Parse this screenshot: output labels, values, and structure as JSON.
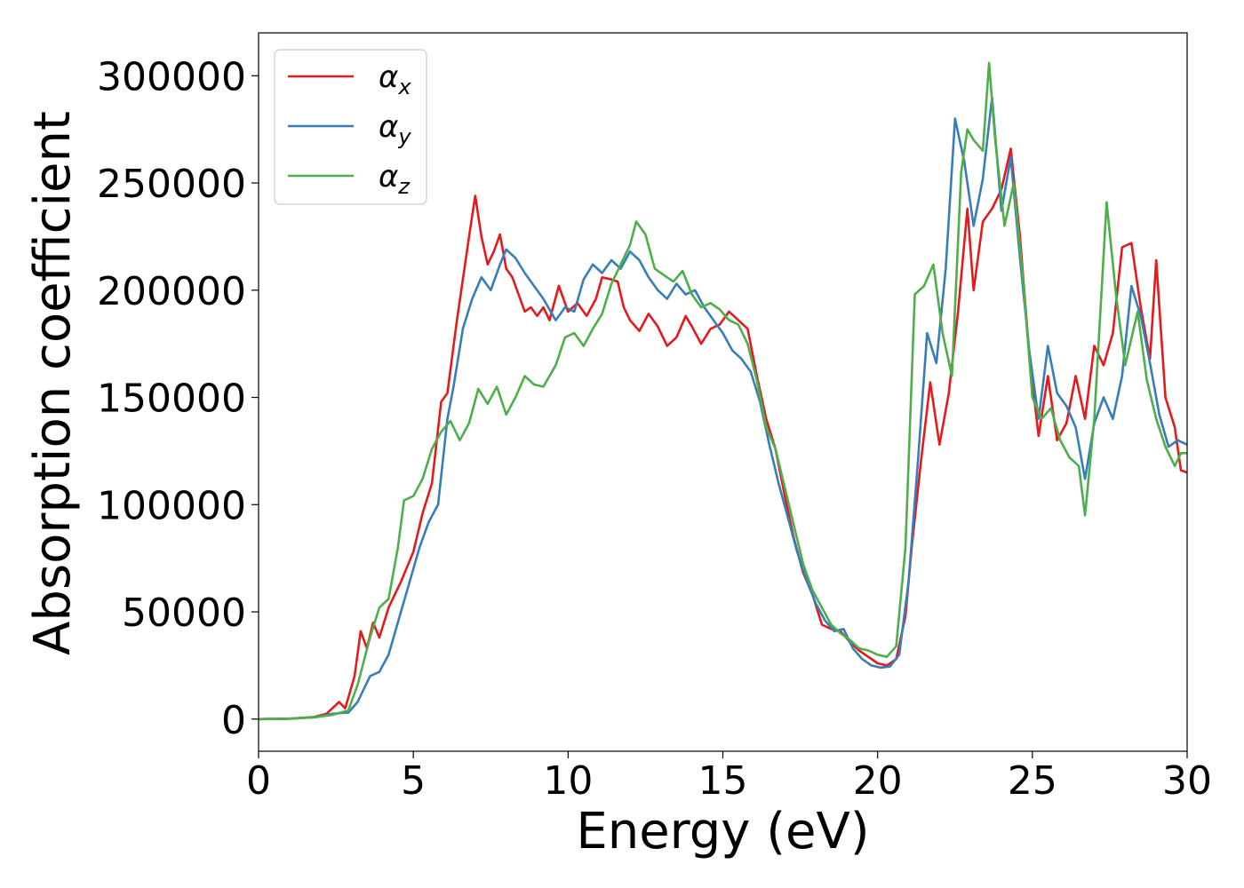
{
  "chart_data": {
    "type": "line",
    "title": "",
    "xlabel": "Energy (eV)",
    "ylabel": "Absorption coefficient",
    "xlim": [
      0,
      30
    ],
    "ylim": [
      -15000,
      320000
    ],
    "xticks": [
      0,
      5,
      10,
      15,
      20,
      25,
      30
    ],
    "yticks": [
      0,
      50000,
      100000,
      150000,
      200000,
      250000,
      300000
    ],
    "grid": false,
    "legend_position": "top-left",
    "series": [
      {
        "name": "αx",
        "legend_main": "α",
        "legend_sub": "x",
        "color": "#e41a1c",
        "points": [
          [
            0,
            0
          ],
          [
            1,
            200
          ],
          [
            1.8,
            1000
          ],
          [
            2.2,
            2500
          ],
          [
            2.6,
            8000
          ],
          [
            2.8,
            5000
          ],
          [
            3.1,
            20000
          ],
          [
            3.3,
            41000
          ],
          [
            3.5,
            33000
          ],
          [
            3.7,
            45000
          ],
          [
            3.9,
            38000
          ],
          [
            4.2,
            52000
          ],
          [
            4.6,
            64000
          ],
          [
            5.0,
            78000
          ],
          [
            5.3,
            96000
          ],
          [
            5.6,
            110000
          ],
          [
            5.9,
            148000
          ],
          [
            6.1,
            152000
          ],
          [
            6.4,
            185000
          ],
          [
            6.6,
            205000
          ],
          [
            6.8,
            225000
          ],
          [
            7.0,
            244000
          ],
          [
            7.2,
            225000
          ],
          [
            7.4,
            212000
          ],
          [
            7.6,
            218000
          ],
          [
            7.8,
            226000
          ],
          [
            8.0,
            210000
          ],
          [
            8.2,
            206000
          ],
          [
            8.4,
            198000
          ],
          [
            8.6,
            190000
          ],
          [
            8.8,
            192000
          ],
          [
            9.0,
            188000
          ],
          [
            9.2,
            192000
          ],
          [
            9.4,
            186000
          ],
          [
            9.7,
            202000
          ],
          [
            10.0,
            190000
          ],
          [
            10.3,
            194000
          ],
          [
            10.6,
            188000
          ],
          [
            10.9,
            196000
          ],
          [
            11.1,
            206000
          ],
          [
            11.4,
            205000
          ],
          [
            11.6,
            204000
          ],
          [
            11.8,
            192000
          ],
          [
            12.0,
            186000
          ],
          [
            12.3,
            181000
          ],
          [
            12.6,
            189000
          ],
          [
            12.9,
            183000
          ],
          [
            13.2,
            174000
          ],
          [
            13.5,
            178000
          ],
          [
            13.8,
            188000
          ],
          [
            14.0,
            183000
          ],
          [
            14.3,
            175000
          ],
          [
            14.6,
            182000
          ],
          [
            14.9,
            184000
          ],
          [
            15.2,
            190000
          ],
          [
            15.5,
            186000
          ],
          [
            15.8,
            182000
          ],
          [
            16.1,
            160000
          ],
          [
            16.4,
            140000
          ],
          [
            16.7,
            126000
          ],
          [
            17.0,
            104000
          ],
          [
            17.3,
            84000
          ],
          [
            17.6,
            68000
          ],
          [
            17.9,
            58000
          ],
          [
            18.2,
            44000
          ],
          [
            18.5,
            42000
          ],
          [
            18.8,
            41000
          ],
          [
            19.1,
            36000
          ],
          [
            19.4,
            32000
          ],
          [
            19.7,
            29000
          ],
          [
            20.0,
            26000
          ],
          [
            20.3,
            25000
          ],
          [
            20.6,
            28000
          ],
          [
            20.9,
            48000
          ],
          [
            21.1,
            80000
          ],
          [
            21.4,
            120000
          ],
          [
            21.7,
            157000
          ],
          [
            22.0,
            128000
          ],
          [
            22.3,
            152000
          ],
          [
            22.6,
            190000
          ],
          [
            22.9,
            238000
          ],
          [
            23.1,
            200000
          ],
          [
            23.4,
            232000
          ],
          [
            23.7,
            238000
          ],
          [
            24.0,
            247000
          ],
          [
            24.3,
            266000
          ],
          [
            24.6,
            225000
          ],
          [
            24.9,
            170000
          ],
          [
            25.2,
            132000
          ],
          [
            25.5,
            160000
          ],
          [
            25.8,
            130000
          ],
          [
            26.1,
            138000
          ],
          [
            26.4,
            160000
          ],
          [
            26.7,
            140000
          ],
          [
            27.0,
            174000
          ],
          [
            27.3,
            165000
          ],
          [
            27.6,
            180000
          ],
          [
            27.9,
            220000
          ],
          [
            28.2,
            222000
          ],
          [
            28.5,
            192000
          ],
          [
            28.8,
            168000
          ],
          [
            29.0,
            214000
          ],
          [
            29.3,
            150000
          ],
          [
            29.6,
            136000
          ],
          [
            29.8,
            116000
          ],
          [
            30.0,
            115000
          ]
        ]
      },
      {
        "name": "αy",
        "legend_main": "α",
        "legend_sub": "y",
        "color": "#377eb8",
        "points": [
          [
            0,
            0
          ],
          [
            1,
            200
          ],
          [
            1.8,
            800
          ],
          [
            2.4,
            2500
          ],
          [
            2.9,
            3000
          ],
          [
            3.2,
            8000
          ],
          [
            3.6,
            20000
          ],
          [
            3.9,
            22000
          ],
          [
            4.2,
            30000
          ],
          [
            4.6,
            50000
          ],
          [
            4.9,
            65000
          ],
          [
            5.2,
            80000
          ],
          [
            5.5,
            92000
          ],
          [
            5.8,
            100000
          ],
          [
            6.1,
            140000
          ],
          [
            6.3,
            155000
          ],
          [
            6.6,
            182000
          ],
          [
            6.9,
            196000
          ],
          [
            7.2,
            206000
          ],
          [
            7.5,
            200000
          ],
          [
            7.8,
            212000
          ],
          [
            8.0,
            219000
          ],
          [
            8.3,
            215000
          ],
          [
            8.6,
            208000
          ],
          [
            8.9,
            202000
          ],
          [
            9.2,
            196000
          ],
          [
            9.6,
            186000
          ],
          [
            9.9,
            192000
          ],
          [
            10.2,
            190000
          ],
          [
            10.5,
            205000
          ],
          [
            10.8,
            212000
          ],
          [
            11.1,
            208000
          ],
          [
            11.4,
            214000
          ],
          [
            11.7,
            210000
          ],
          [
            12.0,
            218000
          ],
          [
            12.3,
            214000
          ],
          [
            12.6,
            206000
          ],
          [
            12.9,
            200000
          ],
          [
            13.2,
            196000
          ],
          [
            13.5,
            203000
          ],
          [
            13.8,
            198000
          ],
          [
            14.1,
            200000
          ],
          [
            14.4,
            192000
          ],
          [
            14.7,
            186000
          ],
          [
            15.0,
            180000
          ],
          [
            15.3,
            172000
          ],
          [
            15.6,
            168000
          ],
          [
            15.9,
            162000
          ],
          [
            16.2,
            148000
          ],
          [
            16.5,
            128000
          ],
          [
            16.8,
            110000
          ],
          [
            17.1,
            94000
          ],
          [
            17.4,
            78000
          ],
          [
            17.7,
            65000
          ],
          [
            18.0,
            54000
          ],
          [
            18.3,
            46000
          ],
          [
            18.6,
            41000
          ],
          [
            18.9,
            42000
          ],
          [
            19.2,
            33000
          ],
          [
            19.5,
            28000
          ],
          [
            19.8,
            25000
          ],
          [
            20.1,
            24000
          ],
          [
            20.4,
            24500
          ],
          [
            20.7,
            30000
          ],
          [
            21.0,
            64000
          ],
          [
            21.3,
            120000
          ],
          [
            21.6,
            180000
          ],
          [
            21.9,
            166000
          ],
          [
            22.2,
            210000
          ],
          [
            22.5,
            280000
          ],
          [
            22.8,
            260000
          ],
          [
            23.1,
            230000
          ],
          [
            23.4,
            252000
          ],
          [
            23.7,
            290000
          ],
          [
            24.0,
            237000
          ],
          [
            24.3,
            262000
          ],
          [
            24.6,
            215000
          ],
          [
            24.9,
            172000
          ],
          [
            25.2,
            140000
          ],
          [
            25.5,
            174000
          ],
          [
            25.8,
            152000
          ],
          [
            26.1,
            146000
          ],
          [
            26.4,
            136000
          ],
          [
            26.7,
            112000
          ],
          [
            27.0,
            138000
          ],
          [
            27.3,
            150000
          ],
          [
            27.6,
            140000
          ],
          [
            27.9,
            160000
          ],
          [
            28.2,
            202000
          ],
          [
            28.5,
            188000
          ],
          [
            28.8,
            166000
          ],
          [
            29.1,
            142000
          ],
          [
            29.4,
            127000
          ],
          [
            29.7,
            130000
          ],
          [
            30.0,
            128000
          ]
        ]
      },
      {
        "name": "αz",
        "legend_main": "α",
        "legend_sub": "z",
        "color": "#4daf4a",
        "points": [
          [
            0,
            0
          ],
          [
            1,
            200
          ],
          [
            1.8,
            800
          ],
          [
            2.4,
            2000
          ],
          [
            2.9,
            4000
          ],
          [
            3.2,
            16000
          ],
          [
            3.6,
            38000
          ],
          [
            3.9,
            52000
          ],
          [
            4.2,
            56000
          ],
          [
            4.5,
            80000
          ],
          [
            4.7,
            102000
          ],
          [
            5.0,
            104000
          ],
          [
            5.3,
            112000
          ],
          [
            5.6,
            126000
          ],
          [
            5.9,
            134000
          ],
          [
            6.2,
            139000
          ],
          [
            6.5,
            130000
          ],
          [
            6.8,
            138000
          ],
          [
            7.1,
            154000
          ],
          [
            7.4,
            147000
          ],
          [
            7.7,
            155000
          ],
          [
            8.0,
            142000
          ],
          [
            8.3,
            150000
          ],
          [
            8.6,
            160000
          ],
          [
            8.9,
            156000
          ],
          [
            9.2,
            155000
          ],
          [
            9.6,
            165000
          ],
          [
            9.9,
            178000
          ],
          [
            10.2,
            180000
          ],
          [
            10.5,
            174000
          ],
          [
            10.8,
            182000
          ],
          [
            11.1,
            189000
          ],
          [
            11.4,
            203000
          ],
          [
            11.7,
            212000
          ],
          [
            12.0,
            221000
          ],
          [
            12.2,
            232000
          ],
          [
            12.5,
            226000
          ],
          [
            12.8,
            210000
          ],
          [
            13.1,
            207000
          ],
          [
            13.4,
            204000
          ],
          [
            13.7,
            209000
          ],
          [
            14.0,
            198000
          ],
          [
            14.3,
            192000
          ],
          [
            14.6,
            194000
          ],
          [
            14.9,
            191000
          ],
          [
            15.2,
            186000
          ],
          [
            15.5,
            184000
          ],
          [
            15.8,
            175000
          ],
          [
            16.1,
            158000
          ],
          [
            16.4,
            136000
          ],
          [
            16.7,
            126000
          ],
          [
            17.0,
            108000
          ],
          [
            17.3,
            90000
          ],
          [
            17.6,
            72000
          ],
          [
            17.9,
            60000
          ],
          [
            18.2,
            52000
          ],
          [
            18.5,
            44000
          ],
          [
            18.8,
            40000
          ],
          [
            19.1,
            37000
          ],
          [
            19.4,
            33000
          ],
          [
            19.7,
            32000
          ],
          [
            20.0,
            30000
          ],
          [
            20.3,
            29000
          ],
          [
            20.6,
            34000
          ],
          [
            20.9,
            80000
          ],
          [
            21.2,
            198000
          ],
          [
            21.5,
            202000
          ],
          [
            21.8,
            212000
          ],
          [
            22.1,
            180000
          ],
          [
            22.4,
            160000
          ],
          [
            22.7,
            255000
          ],
          [
            22.9,
            275000
          ],
          [
            23.1,
            270000
          ],
          [
            23.4,
            265000
          ],
          [
            23.6,
            306000
          ],
          [
            23.8,
            270000
          ],
          [
            24.1,
            230000
          ],
          [
            24.4,
            250000
          ],
          [
            24.7,
            205000
          ],
          [
            25.0,
            150000
          ],
          [
            25.3,
            140000
          ],
          [
            25.6,
            145000
          ],
          [
            25.9,
            130000
          ],
          [
            26.2,
            122000
          ],
          [
            26.5,
            118000
          ],
          [
            26.7,
            95000
          ],
          [
            27.0,
            140000
          ],
          [
            27.4,
            241000
          ],
          [
            27.7,
            198000
          ],
          [
            28.0,
            165000
          ],
          [
            28.4,
            190000
          ],
          [
            28.7,
            158000
          ],
          [
            29.0,
            140000
          ],
          [
            29.3,
            127000
          ],
          [
            29.6,
            118000
          ],
          [
            29.8,
            124000
          ],
          [
            30.0,
            124000
          ]
        ]
      }
    ]
  }
}
